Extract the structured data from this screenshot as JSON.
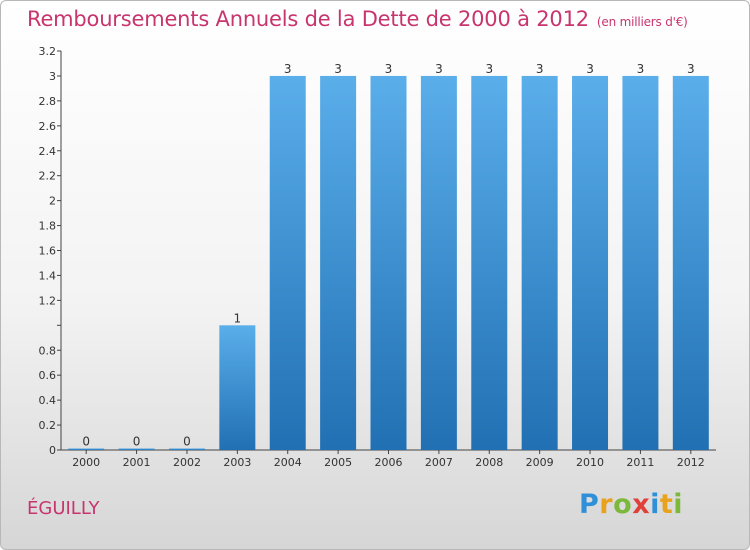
{
  "title": "Remboursements Annuels de la Dette de 2000 à 2012",
  "subtitle": "(en milliers d'€)",
  "commune": "ÉGUILLY",
  "logo": {
    "letters": [
      "P",
      "r",
      "o",
      "x",
      "i",
      "t",
      "i"
    ],
    "colors": [
      "#2f8fd8",
      "#e8a21c",
      "#7cb83a",
      "#e0403a",
      "#2f8fd8",
      "#e8a21c",
      "#7cb83a"
    ]
  },
  "colors": {
    "bar_top": "#5aaeea",
    "bar_bottom": "#2170b3",
    "title": "#c8356e",
    "axis": "#555555"
  },
  "chart_data": {
    "type": "bar",
    "title": "Remboursements Annuels de la Dette de 2000 à 2012",
    "subtitle": "(en milliers d'€)",
    "xlabel": "",
    "ylabel": "",
    "categories": [
      "2000",
      "2001",
      "2002",
      "2003",
      "2004",
      "2005",
      "2006",
      "2007",
      "2008",
      "2009",
      "2010",
      "2011",
      "2012"
    ],
    "values": [
      0,
      0,
      0,
      1,
      3,
      3,
      3,
      3,
      3,
      3,
      3,
      3,
      3
    ],
    "data_labels": [
      "0",
      "0",
      "0",
      "1",
      "3",
      "3",
      "3",
      "3",
      "3",
      "3",
      "3",
      "3",
      "3"
    ],
    "ylim": [
      0,
      3.2
    ],
    "yticks": [
      0,
      0.2,
      0.4,
      0.6,
      0.8,
      1,
      1.2,
      1.4,
      1.6,
      1.8,
      2,
      2.2,
      2.4,
      2.6,
      2.8,
      3,
      3.2
    ],
    "ytick_labels": [
      "0",
      "0.2",
      "0.4",
      "0.6",
      "0.8",
      "",
      "1.2",
      "1.4",
      "1.6",
      "1.8",
      "2",
      "2.2",
      "2.4",
      "2.6",
      "2.8",
      "3",
      "3.2"
    ],
    "grid": false
  }
}
